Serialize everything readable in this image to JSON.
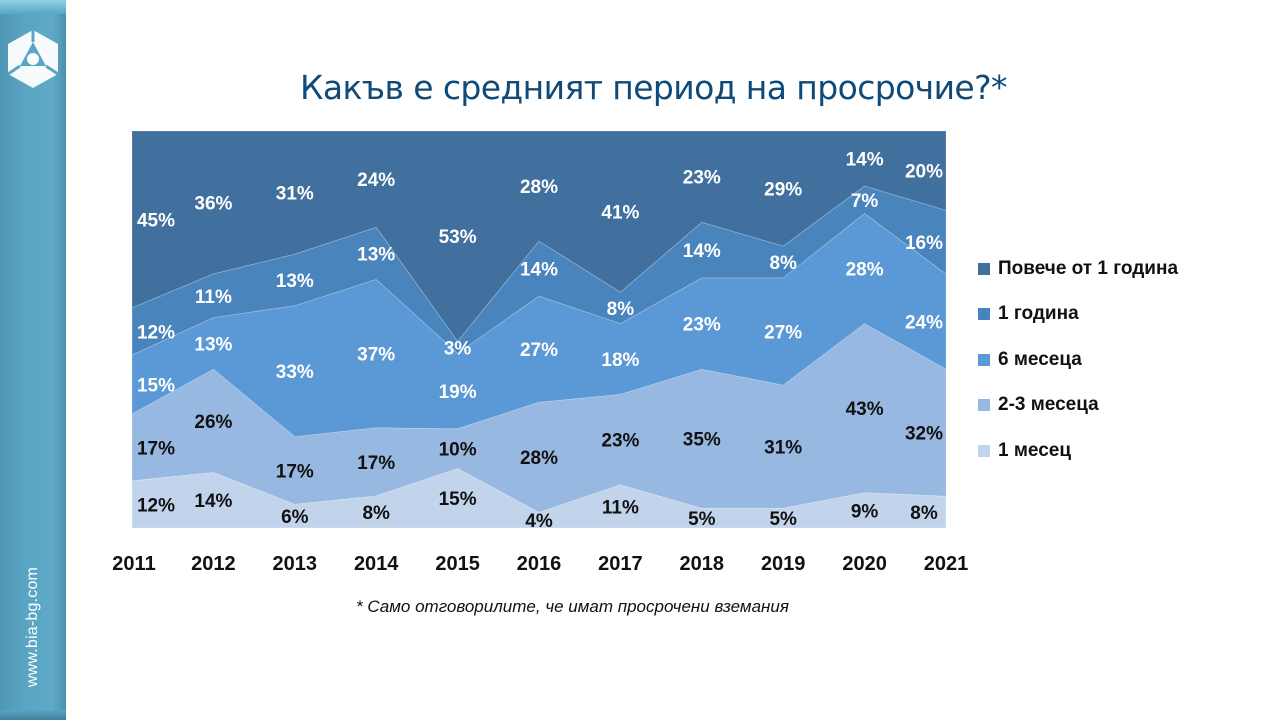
{
  "sidebar": {
    "url": "www.bia-bg.com",
    "logo_icon": "bia-logo-icon"
  },
  "title": "Какъв е средният период на просрочие?*",
  "footnote": "* Само отговорилите, че имат просрочени вземания",
  "chart_data": {
    "type": "area",
    "stacked": "percent",
    "title": "Какъв е средният период на просрочие?*",
    "xlabel": "",
    "ylabel": "",
    "ylim": [
      0,
      100
    ],
    "grid": false,
    "legend_position": "right",
    "categories": [
      "2011",
      "2012",
      "2013",
      "2014",
      "2015",
      "2016",
      "2017",
      "2018",
      "2019",
      "2020",
      "2021"
    ],
    "series": [
      {
        "name": "1 месец",
        "color": "#c2d4ec",
        "label_color": "#111111",
        "values": [
          12,
          14,
          6,
          8,
          15,
          4,
          11,
          5,
          5,
          9,
          8
        ]
      },
      {
        "name": "2-3 месеца",
        "color": "#97b8e0",
        "label_color": "#111111",
        "values": [
          17,
          26,
          17,
          17,
          10,
          28,
          23,
          35,
          31,
          43,
          32
        ]
      },
      {
        "name": "6 месеца",
        "color": "#5a98d6",
        "label_color": "#ffffff",
        "values": [
          15,
          13,
          33,
          37,
          19,
          27,
          18,
          23,
          27,
          28,
          24
        ]
      },
      {
        "name": "1 година",
        "color": "#4a84bd",
        "label_color": "#ffffff",
        "values": [
          12,
          11,
          13,
          13,
          3,
          14,
          8,
          14,
          8,
          7,
          16
        ]
      },
      {
        "name": "Повече от 1 година",
        "color": "#41709e",
        "label_color": "#ffffff",
        "values": [
          45,
          36,
          31,
          24,
          53,
          28,
          41,
          23,
          29,
          14,
          20
        ]
      }
    ],
    "data_labels": [
      [
        "12%",
        "14%",
        "6%",
        "8%",
        "15%",
        "4%",
        "11%",
        "5%",
        "5%",
        "9%",
        "8%"
      ],
      [
        "17%",
        "26%",
        "17%",
        "17%",
        "10%",
        "28%",
        "23%",
        "35%",
        "31%",
        "43%",
        "32%"
      ],
      [
        "15%",
        "13%",
        "33%",
        "37%",
        "19%",
        "27%",
        "18%",
        "23%",
        "27%",
        "28%",
        "24%"
      ],
      [
        "12%",
        "11%",
        "13%",
        "13%",
        "3%",
        "14%",
        "8%",
        "14%",
        "8%",
        "7%",
        "16%"
      ],
      [
        "45%",
        "36%",
        "31%",
        "24%",
        "53%",
        "28%",
        "41%",
        "23%",
        "29%",
        "14%",
        "20%"
      ]
    ]
  },
  "legend": {
    "items": [
      {
        "label": "Повече от 1 година",
        "color": "#41709e"
      },
      {
        "label": "1 година",
        "color": "#4a84bd"
      },
      {
        "label": "6 месеца",
        "color": "#5a98d6"
      },
      {
        "label": "2-3 месеца",
        "color": "#97b8e0"
      },
      {
        "label": "1 месец",
        "color": "#c2d4ec"
      }
    ]
  }
}
